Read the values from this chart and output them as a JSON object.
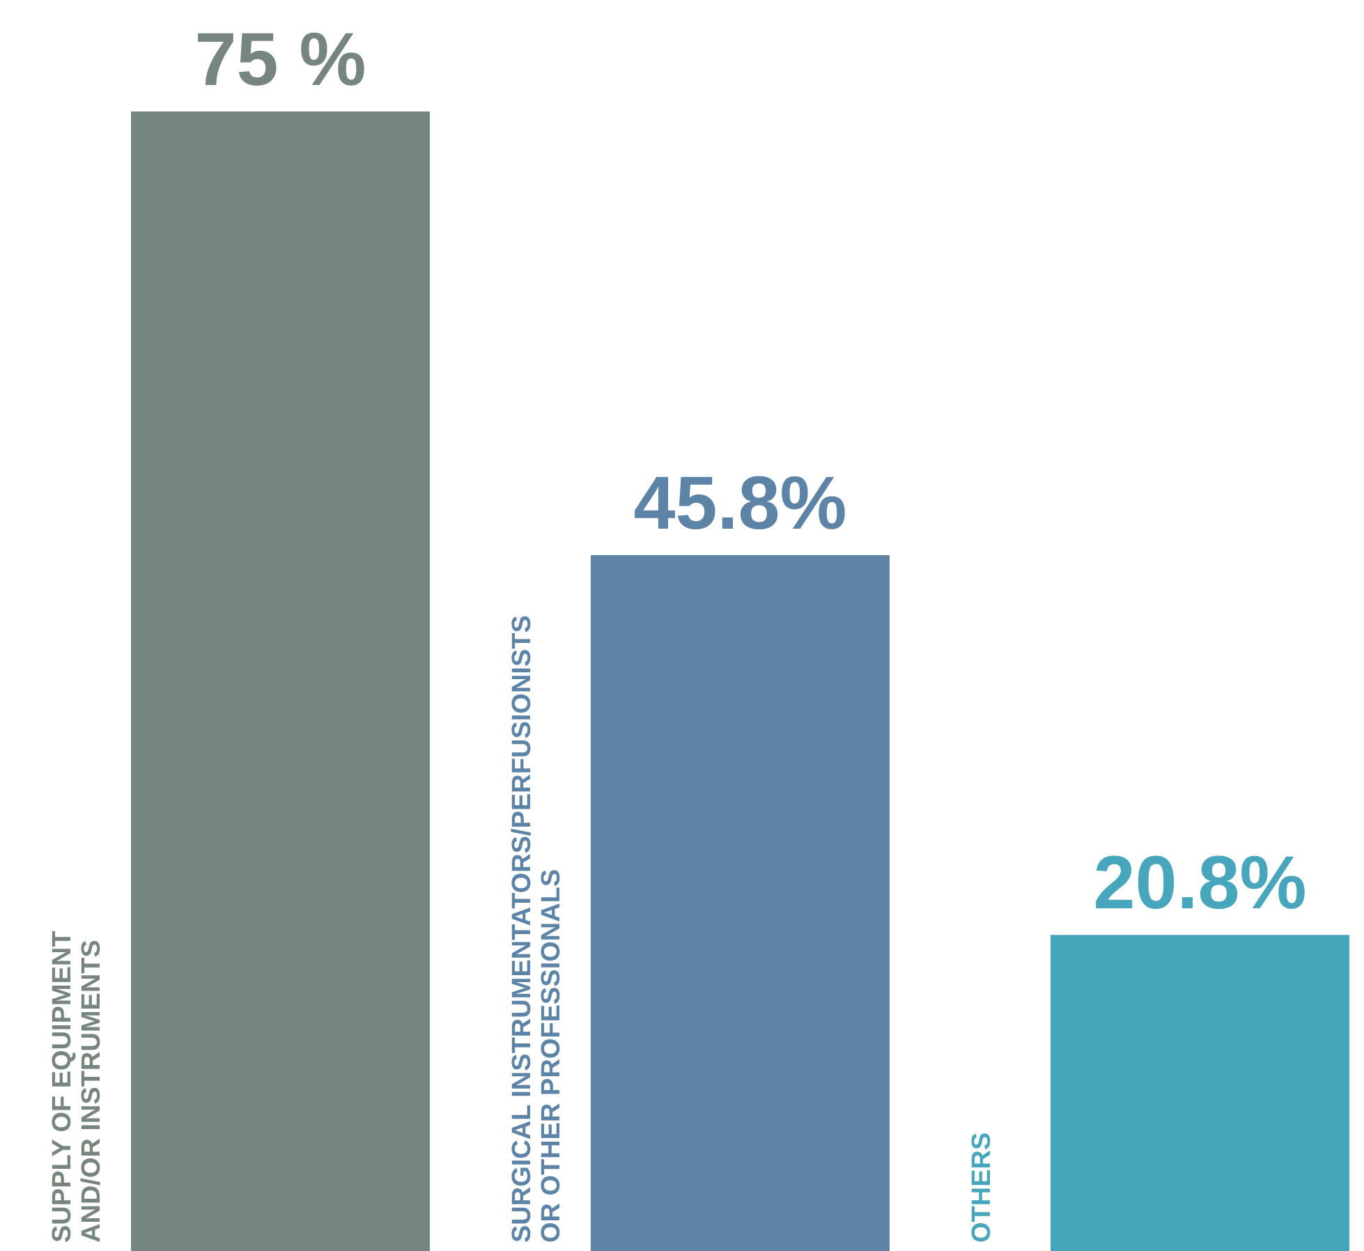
{
  "chart_data": {
    "type": "bar",
    "categories": [
      "SUPPLY OF EQUIPMENT\nAND/OR INSTRUMENTS",
      "SURGICAL INSTRUMENTATORS/PERFUSIONISTS\nOR OTHER PROFESSIONALS",
      "OTHERS"
    ],
    "values": [
      75,
      45.8,
      20.8
    ],
    "colors": [
      "#76867e",
      "#5d84a6",
      "#47a5bc"
    ],
    "value_labels": [
      "75 %",
      "45.8%",
      "20.8%"
    ]
  }
}
